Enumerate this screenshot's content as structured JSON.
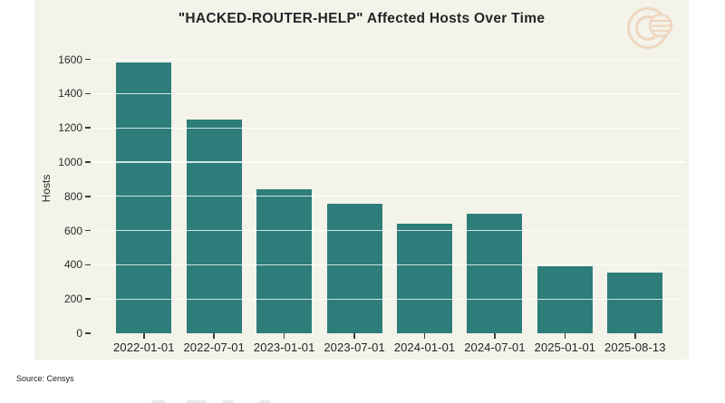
{
  "chart_data": {
    "type": "bar",
    "title": "\"HACKED-ROUTER-HELP\" Affected Hosts Over Time",
    "categories": [
      "2022-01-01",
      "2022-07-01",
      "2023-01-01",
      "2023-07-01",
      "2024-01-01",
      "2024-07-01",
      "2025-01-01",
      "2025-08-13"
    ],
    "values": [
      1580,
      1250,
      840,
      755,
      640,
      700,
      390,
      355
    ],
    "xlabel": "",
    "ylabel": "Hosts",
    "yticks": [
      0,
      200,
      400,
      600,
      800,
      1000,
      1200,
      1400,
      1600
    ],
    "ylim": [
      0,
      1600
    ],
    "grid": true,
    "legend_position": "none",
    "bar_color": "#2d7d7a",
    "panel_background": "#f4f3ea",
    "gridline_color": "rgba(255,255,255,0.78)"
  },
  "footer": {
    "source": "Source: Censys"
  },
  "logo": {
    "name": "censys-logo",
    "color": "#f0d7bf"
  }
}
